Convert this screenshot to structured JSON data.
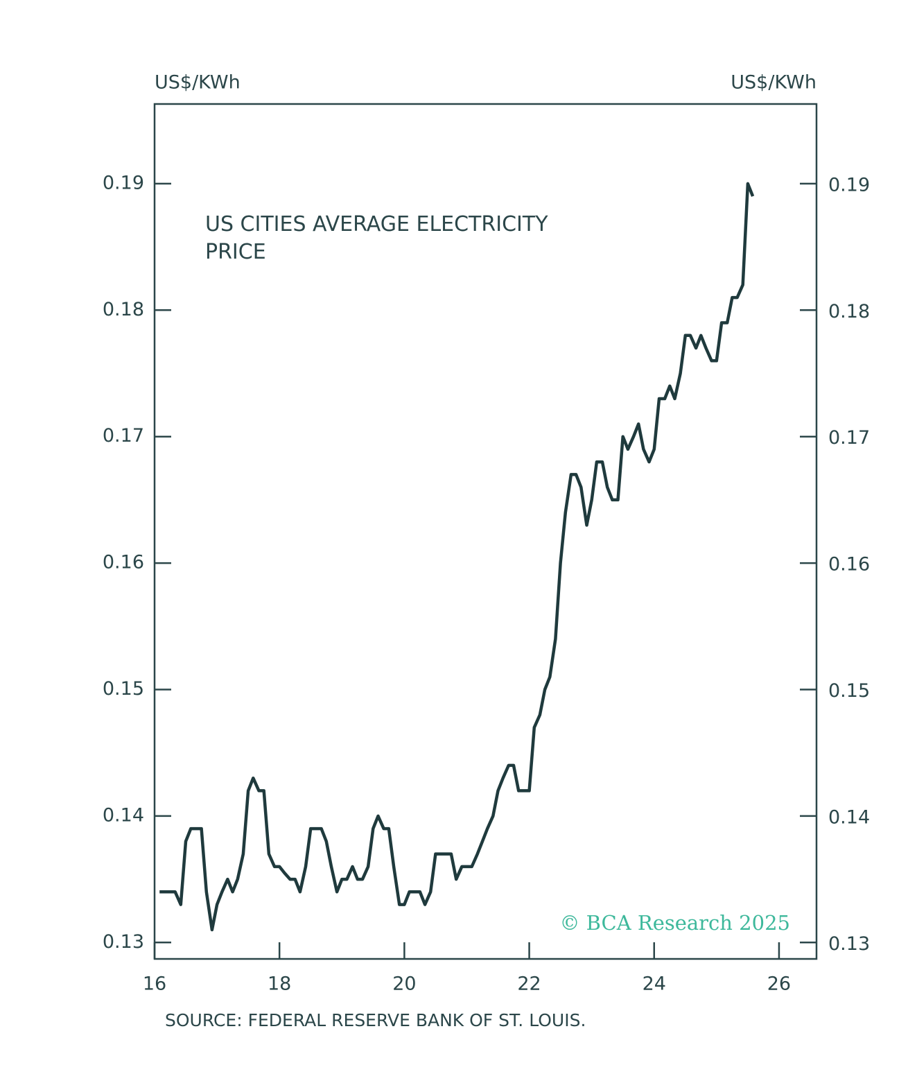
{
  "chart_data": {
    "type": "line",
    "y_label_left": "US$/KWh",
    "y_label_right": "US$/KWh",
    "annotation": "US CITIES AVERAGE ELECTRICITY PRICE",
    "source": "SOURCE: FEDERAL RESERVE BANK OF ST. LOUIS.",
    "credit": "© BCA Research 2025",
    "xlim": [
      16,
      26.6
    ],
    "xticks": [
      16,
      18,
      20,
      22,
      24,
      26
    ],
    "ylim": [
      0.1287,
      0.1963
    ],
    "yticks": [
      0.13,
      0.14,
      0.15,
      0.16,
      0.17,
      0.18,
      0.19
    ],
    "x": [
      16.08,
      16.17,
      16.25,
      16.33,
      16.42,
      16.5,
      16.58,
      16.67,
      16.75,
      16.83,
      16.92,
      17,
      17.08,
      17.17,
      17.25,
      17.33,
      17.42,
      17.5,
      17.58,
      17.67,
      17.75,
      17.83,
      17.92,
      18,
      18.08,
      18.17,
      18.25,
      18.33,
      18.42,
      18.5,
      18.58,
      18.67,
      18.75,
      18.83,
      18.92,
      19,
      19.08,
      19.17,
      19.25,
      19.33,
      19.42,
      19.5,
      19.58,
      19.67,
      19.75,
      19.83,
      19.92,
      20,
      20.08,
      20.17,
      20.25,
      20.33,
      20.42,
      20.5,
      20.58,
      20.67,
      20.75,
      20.83,
      20.92,
      21,
      21.08,
      21.17,
      21.25,
      21.33,
      21.42,
      21.5,
      21.58,
      21.67,
      21.75,
      21.83,
      21.92,
      22,
      22.08,
      22.17,
      22.25,
      22.33,
      22.42,
      22.5,
      22.58,
      22.67,
      22.75,
      22.83,
      22.92,
      23,
      23.08,
      23.17,
      23.25,
      23.33,
      23.42,
      23.5,
      23.58,
      23.67,
      23.75,
      23.83,
      23.92,
      24,
      24.08,
      24.17,
      24.25,
      24.33,
      24.42,
      24.5,
      24.58,
      24.67,
      24.75,
      24.83,
      24.92,
      25,
      25.08,
      25.17,
      25.25,
      25.33,
      25.42,
      25.5,
      25.58
    ],
    "series": [
      {
        "color": "#1f3a3d",
        "values": [
          0.134,
          0.134,
          0.134,
          0.134,
          0.133,
          0.138,
          0.139,
          0.139,
          0.139,
          0.134,
          0.131,
          0.133,
          0.134,
          0.135,
          0.134,
          0.135,
          0.137,
          0.142,
          0.143,
          0.142,
          0.142,
          0.137,
          0.136,
          0.136,
          0.1355,
          0.135,
          0.135,
          0.134,
          0.136,
          0.139,
          0.139,
          0.139,
          0.138,
          0.136,
          0.134,
          0.135,
          0.135,
          0.136,
          0.135,
          0.135,
          0.136,
          0.139,
          0.14,
          0.139,
          0.139,
          0.136,
          0.133,
          0.133,
          0.134,
          0.134,
          0.134,
          0.133,
          0.134,
          0.137,
          0.137,
          0.137,
          0.137,
          0.135,
          0.136,
          0.136,
          0.136,
          0.137,
          0.138,
          0.139,
          0.14,
          0.142,
          0.143,
          0.144,
          0.144,
          0.142,
          0.142,
          0.142,
          0.147,
          0.148,
          0.15,
          0.151,
          0.154,
          0.16,
          0.164,
          0.167,
          0.167,
          0.166,
          0.163,
          0.165,
          0.168,
          0.168,
          0.166,
          0.165,
          0.165,
          0.17,
          0.169,
          0.17,
          0.171,
          0.169,
          0.168,
          0.169,
          0.173,
          0.173,
          0.174,
          0.173,
          0.175,
          0.178,
          0.178,
          0.177,
          0.178,
          0.177,
          0.176,
          0.176,
          0.179,
          0.179,
          0.181,
          0.181,
          0.182,
          0.19,
          0.189
        ]
      }
    ]
  }
}
